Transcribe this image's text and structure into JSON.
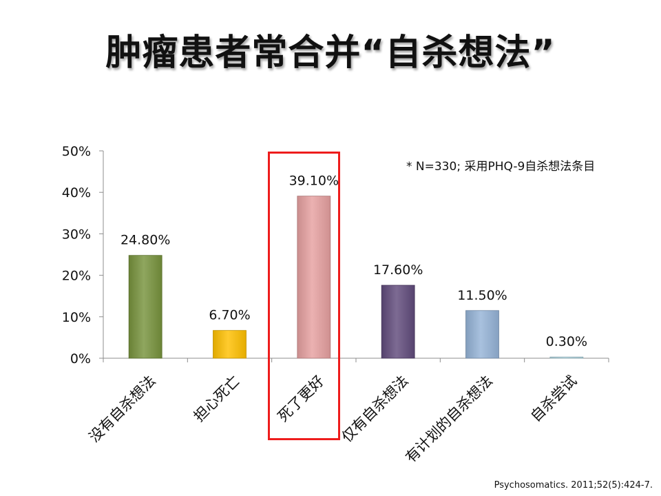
{
  "title": "肿瘤患者常合并“自杀想法”",
  "note": "* N=330; 采用PHQ-9自杀想法条目",
  "citation": "Psychosomatics. 2011;52(5):424-7.",
  "highlight_color": "#ee1c1c",
  "chart_data": {
    "type": "bar",
    "title": "",
    "xlabel": "",
    "ylabel": "",
    "ylim": [
      0,
      50
    ],
    "yticks": [
      "0%",
      "10%",
      "20%",
      "30%",
      "40%",
      "50%"
    ],
    "grid": false,
    "highlighted_category": "死了更好",
    "categories": [
      "没有自杀想法",
      "担心死亡",
      "死了更好",
      "仅有自杀想法",
      "有计划的自杀想法",
      "自杀尝试"
    ],
    "values": [
      24.8,
      6.7,
      39.1,
      17.6,
      11.5,
      0.3
    ],
    "data_labels": [
      "24.80%",
      "6.70%",
      "39.10%",
      "17.60%",
      "11.50%",
      "0.30%"
    ],
    "colors": [
      "#77933c",
      "#ffc000",
      "#e6a0a0",
      "#604a7b",
      "#95b3d7",
      "#b7dde8"
    ]
  }
}
